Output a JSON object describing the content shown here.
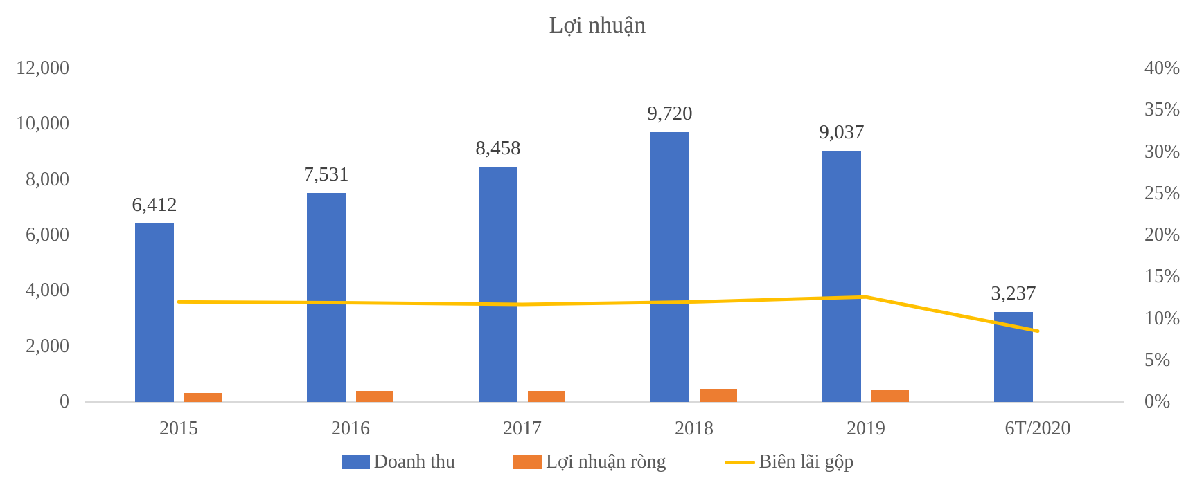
{
  "title": "Lợi nhuận",
  "colors": {
    "revenue_bar": "#4472C4",
    "net_profit_bar": "#ED7D31",
    "gross_margin_line": "#FFC000",
    "axis_line": "#D9D9D9",
    "axis_text": "#595959",
    "data_label_text": "#404040",
    "background": "#FFFFFF"
  },
  "chart_data": {
    "type": "bar",
    "subtype": "combo-bar-line-dual-axis",
    "title": "Lợi nhuận",
    "categories": [
      "2015",
      "2016",
      "2017",
      "2018",
      "2019",
      "6T/2020"
    ],
    "series": [
      {
        "name": "Doanh thu",
        "type": "bar",
        "axis": "left",
        "color": "#4472C4",
        "values": [
          6412,
          7531,
          8458,
          9720,
          9037,
          3237
        ],
        "data_labels": [
          "6,412",
          "7,531",
          "8,458",
          "9,720",
          "9,037",
          "3,237"
        ]
      },
      {
        "name": "Lợi nhuận ròng",
        "type": "bar",
        "axis": "left",
        "color": "#ED7D31",
        "values": [
          330,
          410,
          410,
          470,
          440,
          0
        ],
        "data_labels": null
      },
      {
        "name": "Biên lãi gộp",
        "type": "line",
        "axis": "right",
        "color": "#FFC000",
        "values_pct": [
          12.0,
          11.9,
          11.7,
          12.0,
          12.6,
          8.5
        ]
      }
    ],
    "left_axis": {
      "min": 0,
      "max": 12000,
      "step": 2000,
      "tick_labels": [
        "0",
        "2,000",
        "4,000",
        "6,000",
        "8,000",
        "10,000",
        "12,000"
      ]
    },
    "right_axis": {
      "min": 0,
      "max": 40,
      "step": 5,
      "tick_labels": [
        "0%",
        "5%",
        "10%",
        "15%",
        "20%",
        "25%",
        "30%",
        "35%",
        "40%"
      ]
    },
    "legend": {
      "position": "bottom",
      "entries": [
        "Doanh thu",
        "Lợi nhuận ròng",
        "Biên lãi gộp"
      ]
    },
    "gridlines": false
  }
}
